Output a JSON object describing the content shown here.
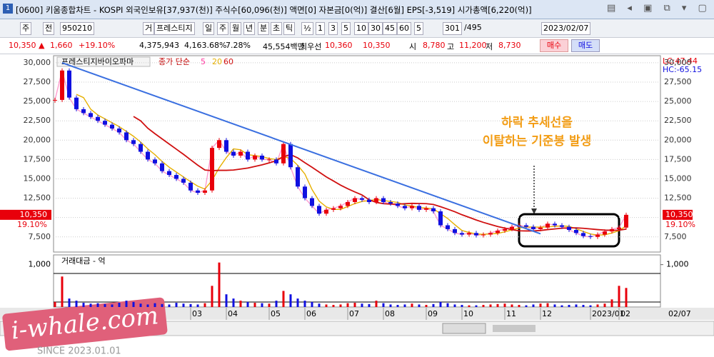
{
  "title_bar": {
    "number": "1",
    "text": "[0600] 키움종합차트 - KOSPI 외국인보유[37,937(천)] 주식수[60,096(천)] 액면[0] 자본금[0(억)] 결산[6월] EPS[-3,519] 시가총액[6,220(억)]"
  },
  "toolbar": {
    "items": [
      "주",
      "전",
      "950210",
      "거",
      "프레스티지",
      "일",
      "주",
      "월",
      "년",
      "분",
      "초",
      "틱",
      "½",
      "1",
      "3",
      "5",
      "10",
      "30",
      "45",
      "60",
      "5",
      "301",
      "/495",
      "2023/02/07"
    ]
  },
  "quote": {
    "price": "10,350 ▲",
    "change": "1,660",
    "rate": "+19.10%",
    "volume": "4,375,943",
    "volume_rate": "4,163.68%",
    "turnover": "7.28%",
    "amount": "45,554백만",
    "best_label": "최우선",
    "ask": "10,360",
    "bid": "10,350",
    "open_label": "시",
    "open": "8,780",
    "high_label": "고",
    "high": "11,200",
    "low_label": "저",
    "low": "8,730",
    "buy": "매수",
    "sell": "매도"
  },
  "chart_data": {
    "type": "candlestick",
    "name": "프레스티지바이오파마",
    "ma_label": "종가 단순",
    "ma": [
      {
        "period": 5,
        "color": "#ff3aa0"
      },
      {
        "period": 20,
        "color": "#e6b000"
      },
      {
        "period": 60,
        "color": "#d01010"
      }
    ],
    "up_color": "#e8000b",
    "down_color": "#1010e0",
    "categories": [
      null,
      null,
      null,
      null,
      null,
      null,
      null,
      null,
      null,
      null,
      null,
      null,
      null,
      null,
      null,
      null,
      null,
      null,
      null,
      "03",
      null,
      null,
      null,
      null,
      "04",
      null,
      null,
      null,
      null,
      null,
      "05",
      null,
      null,
      null,
      null,
      "06",
      null,
      null,
      null,
      null,
      null,
      "07",
      null,
      null,
      null,
      null,
      "08",
      null,
      null,
      null,
      null,
      null,
      "09",
      null,
      null,
      null,
      null,
      "10",
      null,
      null,
      null,
      null,
      null,
      "11",
      null,
      null,
      null,
      null,
      "12",
      null,
      null,
      null,
      null,
      null,
      null,
      "2023/01",
      null,
      null,
      null,
      "02",
      null
    ],
    "close": [
      25200,
      29000,
      25500,
      24000,
      23500,
      23000,
      22500,
      22000,
      21500,
      21000,
      20000,
      19500,
      18500,
      17500,
      17000,
      16000,
      15500,
      15000,
      14500,
      13500,
      13200,
      13500,
      19000,
      20000,
      18500,
      18000,
      18500,
      17500,
      18000,
      17500,
      17500,
      17000,
      19500,
      16500,
      14000,
      12500,
      11500,
      10500,
      11000,
      11200,
      11500,
      12000,
      12500,
      12300,
      12000,
      12500,
      12000,
      11800,
      11500,
      11200,
      11500,
      11000,
      11200,
      10800,
      9000,
      8500,
      8000,
      7800,
      8000,
      7700,
      7800,
      8000,
      8300,
      8500,
      8800,
      9000,
      8800,
      8500,
      8700,
      9200,
      9000,
      8800,
      8400,
      8000,
      7600,
      7500,
      7800,
      8200,
      8500,
      8700,
      10350
    ],
    "ylim": [
      5540,
      30915
    ],
    "yticks": [
      {
        "value": 30000,
        "label": "30,000"
      },
      {
        "value": 27500,
        "label": "27,500"
      },
      {
        "value": 25000,
        "label": "25,000"
      },
      {
        "value": 22500,
        "label": "22,500"
      },
      {
        "value": 20000,
        "label": "20,000"
      },
      {
        "value": 17500,
        "label": "17,500"
      },
      {
        "value": 15000,
        "label": "15,000"
      },
      {
        "value": 12500,
        "label": "12,500"
      },
      {
        "value": 10000,
        "label": "10,000"
      },
      {
        "value": 7500,
        "label": "7,500"
      }
    ],
    "grid": true,
    "trendline": {
      "color": "#3a6fe0",
      "start": [
        1,
        30000
      ],
      "end": [
        68,
        7900
      ]
    },
    "last_price": "10,350",
    "last_rate": "19.10%",
    "lc": "LC:47.44",
    "hc": "HC:-65.15",
    "cursor_date": "02/07",
    "annotation": [
      "하락 추세선을",
      "이탈하는 기준봉 발생"
    ],
    "volume": {
      "title": "거래대금 - 억",
      "values": [
        120,
        720,
        200,
        150,
        100,
        80,
        90,
        70,
        60,
        100,
        150,
        120,
        80,
        60,
        90,
        70,
        60,
        100,
        80,
        70,
        60,
        90,
        500,
        1050,
        300,
        200,
        150,
        120,
        100,
        90,
        80,
        150,
        380,
        300,
        200,
        150,
        120,
        80,
        60,
        50,
        60,
        90,
        100,
        80,
        70,
        150,
        90,
        60,
        50,
        60,
        80,
        60,
        50,
        70,
        120,
        90,
        60,
        50,
        40,
        40,
        50,
        60,
        70,
        80,
        60,
        50,
        40,
        60,
        80,
        90,
        60,
        40,
        50,
        60,
        50,
        40,
        60,
        80,
        180,
        500,
        450
      ],
      "ylim": [
        0,
        1230
      ],
      "yticks": [
        {
          "value": 1000,
          "label": "1,000"
        }
      ]
    }
  },
  "watermark": {
    "site": "i-whale.com",
    "since": "SINCE 2023.01.01"
  }
}
